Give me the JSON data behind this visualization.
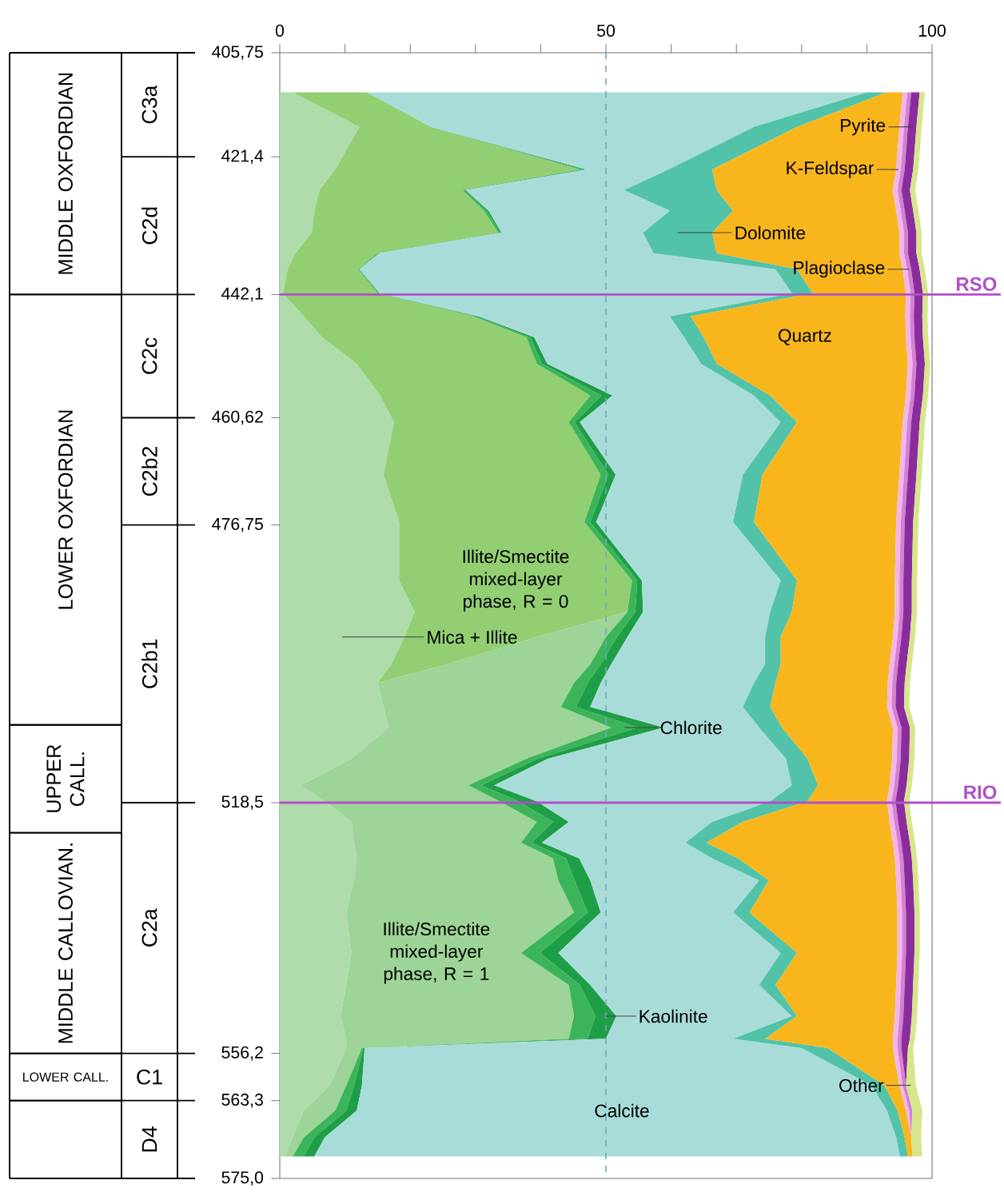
{
  "chart_data": {
    "type": "area",
    "stacked": true,
    "orientation": "horizontal",
    "x": [
      411.7,
      416.9,
      423.3,
      426.4,
      429.5,
      432.8,
      435.9,
      438.3,
      441.9,
      445.4,
      448.5,
      452.5,
      457.3,
      461.3,
      469.2,
      476.3,
      485.1,
      489.8,
      493.6,
      497.7,
      500.5,
      504.1,
      507.2,
      511.9,
      515.9,
      518.3,
      521.4,
      524.5,
      526.9,
      530.2,
      535.0,
      541.1,
      545.9,
      550.6,
      554.0,
      555.4,
      561.0,
      564.8,
      568.8,
      571.7
    ],
    "series": [
      {
        "name": "Mica + Illite",
        "color": "#aedcaa",
        "values": [
          2.0,
          12.2,
          8.5,
          6.1,
          5.3,
          4.9,
          2.4,
          1.2,
          0.5,
          3.7,
          6.5,
          11.8,
          15.4,
          17.5,
          15.9,
          18.3,
          18.3,
          20.7,
          19.1,
          17.1,
          15.0,
          15.9,
          16.7,
          11.0,
          3.3,
          6.9,
          11.0,
          11.4,
          11.8,
          11.4,
          10.2,
          11.0,
          10.2,
          9.3,
          10.2,
          10.2,
          7.7,
          3.7,
          2.0,
          0.8
        ]
      },
      {
        "name": "Illite/Smectite mixed-layer phase, R = 0",
        "color": "#92cf72",
        "values": [
          11.4,
          11.0,
          37.5,
          21.9,
          26.0,
          28.6,
          12.6,
          10.8,
          14.5,
          26.0,
          31.3,
          27.6,
          32.2,
          26.8,
          33.3,
          28.4,
          35.7,
          32.6,
          20.3,
          8.5,
          0,
          0,
          0,
          0,
          0,
          0,
          0,
          0,
          0,
          0,
          0,
          0,
          0,
          0,
          0,
          0,
          0,
          0,
          0,
          0
        ]
      },
      {
        "name": "Illite/Smectite mixed-layer phase, R = 1",
        "color": "#9dd497",
        "values": [
          0,
          0,
          0,
          0,
          0,
          0,
          0,
          0,
          0,
          0,
          0,
          0,
          0,
          0,
          0,
          0,
          0,
          0,
          10.6,
          22.0,
          30.1,
          27.2,
          34.1,
          26.8,
          25.6,
          26.8,
          28.4,
          25.6,
          30.1,
          31.3,
          34.9,
          26.0,
          34.1,
          35.8,
          34.1,
          2.4,
          2.5,
          4.8,
          1.7,
          1.2
        ]
      },
      {
        "name": "Chlorite",
        "color": "#3cb55a",
        "values": [
          0,
          0,
          0.5,
          0.3,
          0.4,
          0.3,
          0.2,
          0.1,
          0.2,
          0.4,
          0.6,
          0.8,
          1.7,
          0.9,
          1.2,
          0.9,
          0.8,
          1.2,
          1.7,
          1.6,
          2.1,
          2.3,
          4.1,
          1.7,
          2.0,
          2.9,
          2.5,
          1.6,
          2.0,
          2.5,
          2.1,
          2.9,
          1.7,
          3.3,
          2.9,
          0.2,
          1.2,
          1.7,
          1.6,
          1.7
        ]
      },
      {
        "name": "Kaolinite",
        "color": "#1f9e48",
        "values": [
          0,
          0,
          0.5,
          0.2,
          0.3,
          0.2,
          0.1,
          0.1,
          0.1,
          0.4,
          0.6,
          0.8,
          1.7,
          0.8,
          1.1,
          0.9,
          0.7,
          1.2,
          1.6,
          1.6,
          2.0,
          2.2,
          4.0,
          1.6,
          2.0,
          2.8,
          2.4,
          1.6,
          2.0,
          2.4,
          2.0,
          2.8,
          1.6,
          3.2,
          2.8,
          0.2,
          1.2,
          1.6,
          1.6,
          1.6
        ]
      },
      {
        "name": "Calcite",
        "color": "#a8dcd9",
        "values": [
          76.6,
          49.5,
          12.6,
          24.3,
          27.8,
          21.7,
          42.0,
          63.8,
          63.2,
          29.3,
          23.0,
          23.6,
          21.7,
          30.8,
          19.5,
          21.0,
          21.3,
          19.5,
          21.1,
          23.6,
          23.5,
          23.4,
          14.6,
          36.5,
          45.6,
          35.8,
          22.0,
          22.0,
          20.4,
          25.9,
          20.3,
          34.1,
          25.9,
          26.9,
          19.5,
          67.0,
          78.1,
          81.3,
          87.6,
          89.8
        ]
      },
      {
        "name": "Dolomite",
        "color": "#52c3a8",
        "values": [
          3.0,
          6.6,
          6.7,
          14.2,
          9.7,
          10.6,
          9.7,
          3.3,
          3.2,
          3.2,
          3.0,
          2.4,
          2.5,
          2.5,
          3.0,
          3.2,
          2.5,
          3.3,
          2.4,
          2.4,
          3.3,
          4.2,
          3.5,
          3.3,
          4.0,
          5.7,
          4.7,
          3.2,
          4.0,
          1.5,
          2.5,
          2.5,
          2.5,
          0.8,
          4.9,
          4.0,
          2.0,
          1.6,
          1.3,
          1.2
        ]
      },
      {
        "name": "Quartz",
        "color": "#f8b61c",
        "values": [
          2.5,
          15.7,
          28.2,
          27.0,
          25.0,
          28.7,
          28.0,
          16.2,
          14.3,
          32.9,
          31.0,
          29.3,
          20.8,
          16.2,
          21.0,
          21.8,
          15.0,
          15.8,
          17.2,
          16.7,
          17.2,
          17.9,
          17.0,
          13.0,
          11.0,
          12.2,
          22.5,
          28.6,
          24.0,
          19.5,
          22.7,
          15.4,
          18.5,
          15.0,
          19.6,
          10.0,
          2.3,
          1.3,
          1.0,
          0.7
        ]
      },
      {
        "name": "K-Feldspar",
        "color": "#f2b6ec",
        "values": [
          0.7,
          0.7,
          0.7,
          0.7,
          0.7,
          0.7,
          0.7,
          0.7,
          0.7,
          0.7,
          0.7,
          0.7,
          0.7,
          0.7,
          0.7,
          0.7,
          0.7,
          0.7,
          0.7,
          0.7,
          0.7,
          0.7,
          0.7,
          0.7,
          0.7,
          0.7,
          0.7,
          0.7,
          0.7,
          0.7,
          0.7,
          0.7,
          0.7,
          0.7,
          0.7,
          0.7,
          0.5,
          0.5,
          0,
          0
        ]
      },
      {
        "name": "Plagioclase",
        "color": "#d680d2",
        "values": [
          0.6,
          0.6,
          0.6,
          0.6,
          0.6,
          0.6,
          0.6,
          0.6,
          0.6,
          0.6,
          0.6,
          0.6,
          0.6,
          0.6,
          0.6,
          0.6,
          0.6,
          0.6,
          0.6,
          0.6,
          0.6,
          0.6,
          0.6,
          0.6,
          0.6,
          0.6,
          0.6,
          0.6,
          0.6,
          0.6,
          0.6,
          0.6,
          0.6,
          0.6,
          0.6,
          0.6,
          0.5,
          0.5,
          0,
          0
        ]
      },
      {
        "name": "Pyrite",
        "color": "#8b2c9e",
        "values": [
          1.3,
          1.3,
          1.3,
          1.3,
          1.3,
          1.3,
          1.3,
          1.3,
          1.3,
          1.3,
          1.3,
          1.3,
          1.3,
          1.3,
          1.3,
          1.3,
          1.3,
          1.3,
          1.3,
          1.3,
          1.3,
          1.3,
          1.3,
          1.3,
          1.3,
          1.3,
          1.3,
          1.3,
          1.3,
          1.3,
          1.3,
          1.3,
          1.3,
          1.3,
          1.3,
          1.0,
          0,
          0,
          0,
          0
        ]
      },
      {
        "name": "Other",
        "color": "#d6e68a",
        "values": [
          0.8,
          0.8,
          0.8,
          0.8,
          0.8,
          0.8,
          0.8,
          0.8,
          0.8,
          0.8,
          0.8,
          0.8,
          0.8,
          0.8,
          0.8,
          0.8,
          0.8,
          0.8,
          0.8,
          0.8,
          0.8,
          0.8,
          0.8,
          0.8,
          0.8,
          0.8,
          0.8,
          0.8,
          0.8,
          0.8,
          0.8,
          0.8,
          0.8,
          0.8,
          0.8,
          0.8,
          1.5,
          1.5,
          1.5,
          1.5
        ]
      }
    ],
    "xlim": [
      0,
      100
    ],
    "xticks": [
      0,
      {
        "value": 10,
        "label": null
      },
      {
        "value": 20,
        "label": null
      },
      {
        "value": 30,
        "label": null
      },
      {
        "value": 40,
        "label": null
      },
      50,
      {
        "value": 60,
        "label": null
      },
      {
        "value": 70,
        "label": null
      },
      {
        "value": 80,
        "label": null
      },
      {
        "value": 90,
        "label": null
      },
      100
    ],
    "ylim": [
      575,
      405.75
    ],
    "yticks": [
      {
        "value": 405.75,
        "label": "405,75"
      },
      {
        "value": 421.4,
        "label": "421,4"
      },
      {
        "value": 442.1,
        "label": "442,1"
      },
      {
        "value": 460.62,
        "label": "460,62"
      },
      {
        "value": 476.75,
        "label": "476,75"
      },
      {
        "value": 518.5,
        "label": "518,5"
      },
      {
        "value": 556.2,
        "label": "556,2"
      },
      {
        "value": 563.3,
        "label": "563,3"
      },
      {
        "value": 575.0,
        "label": "575,0"
      }
    ],
    "ref_lines": [
      {
        "axis": "y",
        "value": 442.1,
        "label": "RSO",
        "color": "#b050c8"
      },
      {
        "axis": "y",
        "value": 518.5,
        "label": "RIO",
        "color": "#b050c8"
      },
      {
        "axis": "x",
        "value": 50,
        "color": "#6fa9b8",
        "line_style": "dashed"
      }
    ],
    "annotations": [
      "C3a",
      "C2d",
      "C2c",
      "C2b2",
      "C2b1",
      "C2a",
      "C1",
      "D4",
      "MIDDLE OXFORDIAN",
      "LOWER OXFORDIAN",
      "UPPER CALL.",
      "MIDDLE CALLOVIAN.",
      "LOWER CALL."
    ]
  }
}
